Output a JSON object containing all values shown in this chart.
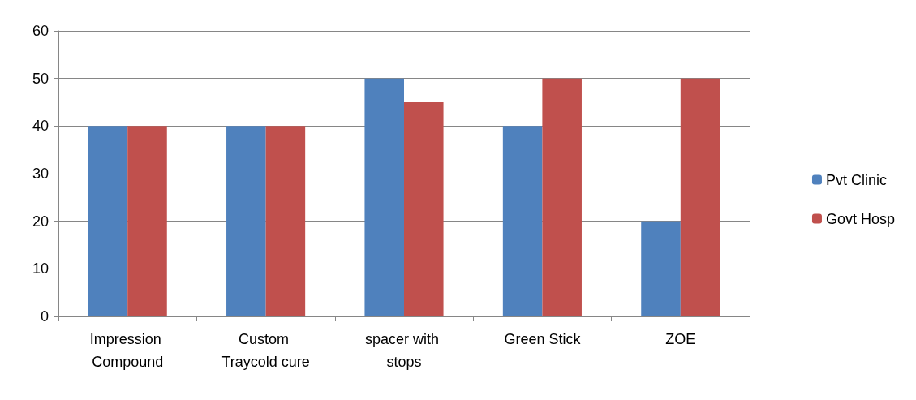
{
  "chart_data": {
    "type": "bar",
    "categories": [
      "Impression Compound",
      "Custom Traycold cure",
      "spacer with stops",
      "Green Stick",
      "ZOE"
    ],
    "series": [
      {
        "name": "Pvt Clinic",
        "color": "#4f81bd",
        "values": [
          40,
          40,
          50,
          40,
          20
        ]
      },
      {
        "name": "Govt Hosp",
        "color": "#c0504d",
        "values": [
          40,
          40,
          45,
          50,
          50
        ]
      }
    ],
    "ylim": [
      0,
      60
    ],
    "yticks": [
      0,
      10,
      20,
      30,
      40,
      50,
      60
    ],
    "grid": "y",
    "legend": "right"
  }
}
